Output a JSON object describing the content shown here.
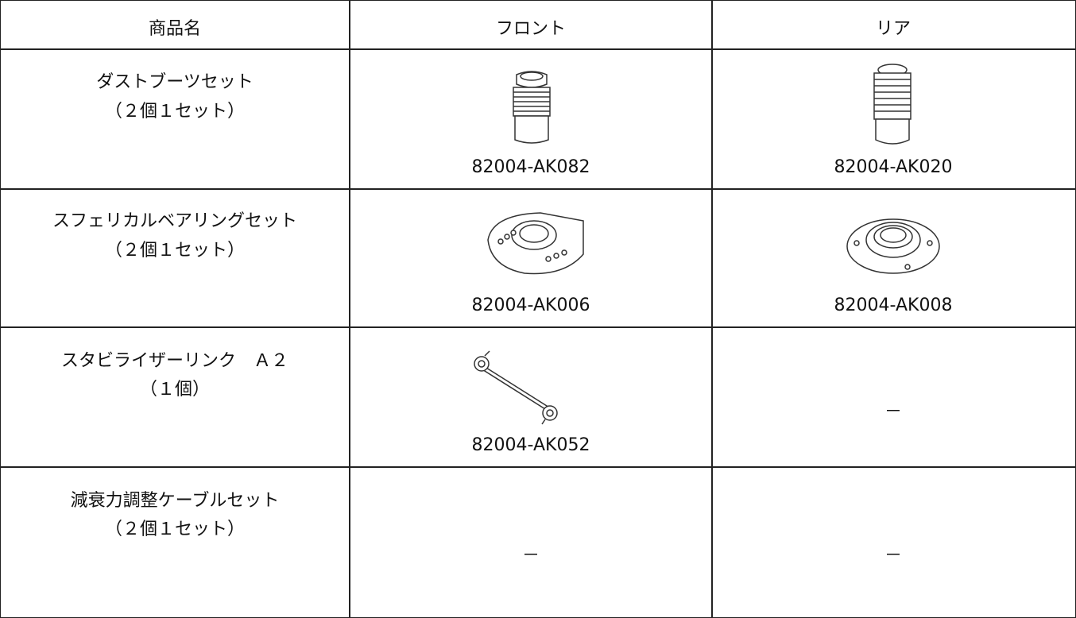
{
  "table": {
    "header": [
      "商品名",
      "フロント",
      "リア"
    ],
    "rows": [
      {
        "name": [
          "ダストブーツセット",
          "（２個１セット）"
        ],
        "front": "82004-AK082",
        "rear": "82004-AK020"
      },
      {
        "name": [
          "スフェリカルベアリングセット",
          "（２個１セット）"
        ],
        "front": "82004-AK006",
        "rear": "82004-AK008"
      },
      {
        "name": [
          "スタビライザーリンク　Ａ２",
          "（１個）"
        ],
        "front": "82004-AK052",
        "rear": "－"
      },
      {
        "name": [
          "減衰力調整ケーブルセット",
          "（２個１セット）"
        ],
        "front": "－",
        "rear": "－"
      }
    ]
  }
}
